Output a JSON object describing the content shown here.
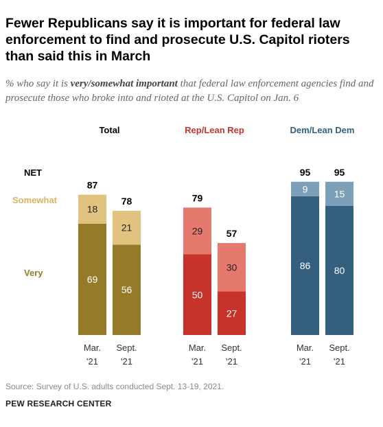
{
  "header": {
    "title": "Fewer Republicans say it is important for federal law enforcement to find and prosecute U.S. Capitol rioters than said this in March",
    "subtitle_pre": "% who say it is ",
    "subtitle_emph": "very/somewhat important",
    "subtitle_post": " that federal law enforcement agencies find and prosecute those who broke into and rioted at the U.S. Capitol on Jan. 6"
  },
  "footer": {
    "source": "Source: Survey of U.S. adults conducted Sept. 13-19, 2021.",
    "org": "PEW RESEARCH CENTER"
  },
  "chart_data": {
    "type": "bar",
    "stacked": true,
    "row_labels": {
      "net": "NET",
      "somewhat": "Somewhat",
      "very": "Very"
    },
    "groups": [
      {
        "name": "Total",
        "color_very": "#957A2A",
        "color_somewhat": "#E2C27F",
        "label_color": "#000000",
        "bars": [
          {
            "label_line1": "Mar.",
            "label_line2": "'21",
            "very": 69,
            "somewhat": 18,
            "net": 87
          },
          {
            "label_line1": "Sept.",
            "label_line2": "'21",
            "very": 56,
            "somewhat": 21,
            "net": 78
          }
        ]
      },
      {
        "name": "Rep/Lean Rep",
        "color_very": "#C7332B",
        "color_somewhat": "#E6796D",
        "label_color": "#C7332B",
        "bars": [
          {
            "label_line1": "Mar.",
            "label_line2": "'21",
            "very": 50,
            "somewhat": 29,
            "net": 79
          },
          {
            "label_line1": "Sept.",
            "label_line2": "'21",
            "very": 27,
            "somewhat": 30,
            "net": 57
          }
        ]
      },
      {
        "name": "Dem/Lean Dem",
        "color_very": "#345F7E",
        "color_somewhat": "#7D9FB8",
        "label_color": "#345F7E",
        "bars": [
          {
            "label_line1": "Mar.",
            "label_line2": "'21",
            "very": 86,
            "somewhat": 9,
            "net": 95
          },
          {
            "label_line1": "Sept.",
            "label_line2": "'21",
            "very": 80,
            "somewhat": 15,
            "net": 95
          }
        ]
      }
    ],
    "colors": {
      "somewhat_label": "#D9B463",
      "very_label": "#957A2A",
      "baseline": "#cccccc"
    }
  }
}
